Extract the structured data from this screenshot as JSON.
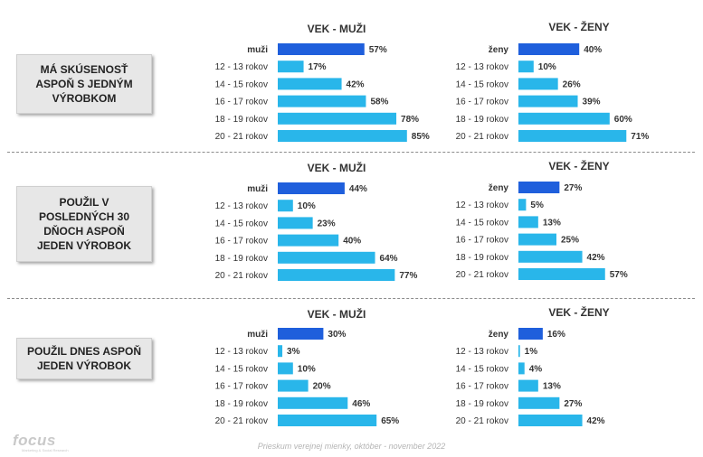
{
  "colors": {
    "highlight": "#1f5fdc",
    "bar": "#29b6ea"
  },
  "labels": {
    "row1": "MÁ SKÚSENOSŤ\nASPOŇ S JEDNÝM\nVÝROBKOM",
    "row2": "POUŽIL V\nPOSLEDNÝCH 30\nDŇOCH ASPOŇ\nJEDEN VÝROBOK",
    "row3": "POUŽIL DNES ASPOŇ\nJEDEN VÝROBOK"
  },
  "footer": "Prieskum verejnej mienky, október - november 2022",
  "logo": {
    "name": "focus",
    "sub": "Marketing & Social Research"
  },
  "chart_data": [
    {
      "type": "bar",
      "title": "VEK - MUŽI",
      "categories": [
        "muži",
        "12 - 13 rokov",
        "14 - 15 rokov",
        "16 - 17 rokov",
        "18 - 19 rokov",
        "20 - 21 rokov"
      ],
      "values": [
        57,
        17,
        42,
        58,
        78,
        85
      ],
      "value_suffix": "%"
    },
    {
      "type": "bar",
      "title": "VEK - ŽENY",
      "categories": [
        "ženy",
        "12 - 13 rokov",
        "14 - 15 rokov",
        "16 - 17 rokov",
        "18 - 19 rokov",
        "20 - 21 rokov"
      ],
      "values": [
        40,
        10,
        26,
        39,
        60,
        71
      ],
      "value_suffix": "%"
    },
    {
      "type": "bar",
      "title": "VEK - MUŽI",
      "categories": [
        "muži",
        "12 - 13 rokov",
        "14 - 15 rokov",
        "16 - 17 rokov",
        "18 - 19 rokov",
        "20 - 21 rokov"
      ],
      "values": [
        44,
        10,
        23,
        40,
        64,
        77
      ],
      "value_suffix": "%"
    },
    {
      "type": "bar",
      "title": "VEK - ŽENY",
      "categories": [
        "ženy",
        "12 - 13 rokov",
        "14 - 15 rokov",
        "16 - 17 rokov",
        "18 - 19 rokov",
        "20 - 21 rokov"
      ],
      "values": [
        27,
        5,
        13,
        25,
        42,
        57
      ],
      "value_suffix": "%"
    },
    {
      "type": "bar",
      "title": "VEK - MUŽI",
      "categories": [
        "muži",
        "12 - 13 rokov",
        "14 - 15 rokov",
        "16 - 17 rokov",
        "18 - 19 rokov",
        "20 - 21 rokov"
      ],
      "values": [
        30,
        3,
        10,
        20,
        46,
        65
      ],
      "value_suffix": "%"
    },
    {
      "type": "bar",
      "title": "VEK - ŽENY",
      "categories": [
        "ženy",
        "12 - 13 rokov",
        "14 - 15 rokov",
        "16 - 17 rokov",
        "18 - 19 rokov",
        "20 - 21 rokov"
      ],
      "values": [
        16,
        1,
        4,
        13,
        27,
        42
      ],
      "value_suffix": "%"
    }
  ]
}
